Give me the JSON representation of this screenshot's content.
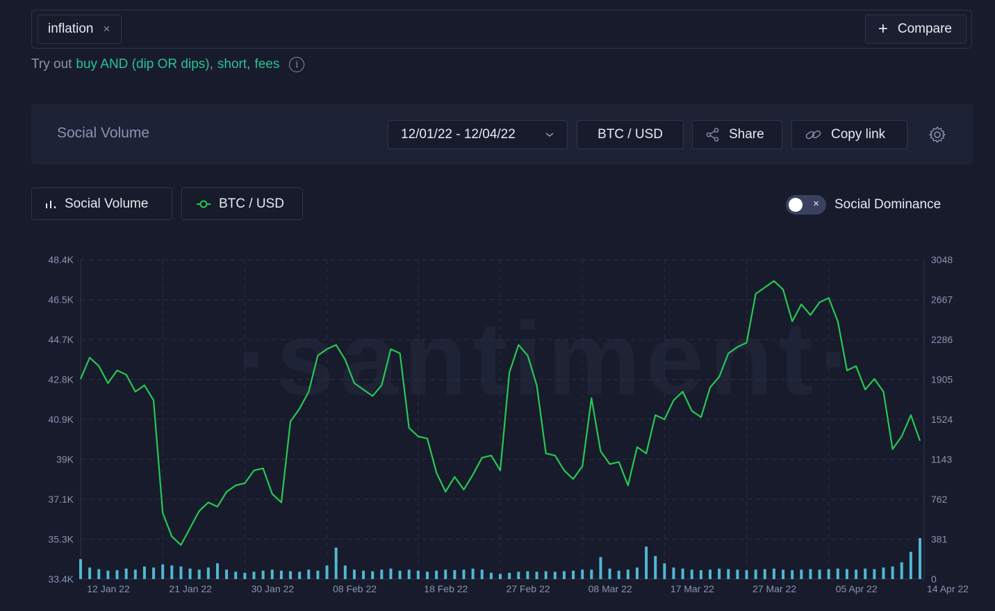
{
  "search": {
    "tag": "inflation",
    "remove": "×",
    "compare_label": "Compare"
  },
  "hint": {
    "prefix": "Try out",
    "queries": [
      "buy AND (dip OR dips)",
      "short",
      "fees"
    ],
    "sep": ","
  },
  "toolbar": {
    "title": "Social Volume",
    "date_range": "12/01/22 - 12/04/22",
    "pair": "BTC / USD",
    "share": "Share",
    "copy_link": "Copy link"
  },
  "metrics": {
    "social_volume": "Social Volume",
    "btc_usd": "BTC / USD",
    "dominance_toggle": "Social Dominance",
    "toggle_x": "×"
  },
  "watermark": "·santiment·",
  "colors": {
    "background": "#181b2b",
    "price_line": "#26c953",
    "volume_bars": "#4fb8d4",
    "accent": "#26c497"
  },
  "chart_data": {
    "type": "line",
    "x_labels": [
      "12 Jan 22",
      "21 Jan 22",
      "30 Jan 22",
      "08 Feb 22",
      "18 Feb 22",
      "27 Feb 22",
      "08 Mar 22",
      "17 Mar 22",
      "27 Mar 22",
      "05 Apr 22",
      "14 Apr 22"
    ],
    "left_axis_ticks": [
      "48.4K",
      "46.5K",
      "44.7K",
      "42.8K",
      "40.9K",
      "39K",
      "37.1K",
      "35.3K",
      "33.4K"
    ],
    "right_axis_ticks": [
      "3048",
      "2667",
      "2286",
      "1905",
      "1524",
      "1143",
      "762",
      "381",
      "0"
    ],
    "left_ylim": [
      33400,
      48400
    ],
    "right_ylim": [
      0,
      3048
    ],
    "grid": true,
    "series": [
      {
        "name": "BTC / USD",
        "axis": "left",
        "points": [
          [
            "01-12",
            42800
          ],
          [
            "01-13",
            43800
          ],
          [
            "01-14",
            43400
          ],
          [
            "01-15",
            42600
          ],
          [
            "01-16",
            43200
          ],
          [
            "01-17",
            43000
          ],
          [
            "01-18",
            42200
          ],
          [
            "01-19",
            42500
          ],
          [
            "01-20",
            41800
          ],
          [
            "01-21",
            36500
          ],
          [
            "01-22",
            35400
          ],
          [
            "01-23",
            35000
          ],
          [
            "01-24",
            35800
          ],
          [
            "01-25",
            36600
          ],
          [
            "01-26",
            37000
          ],
          [
            "01-27",
            36800
          ],
          [
            "01-28",
            37500
          ],
          [
            "01-29",
            37800
          ],
          [
            "01-30",
            37900
          ],
          [
            "01-31",
            38500
          ],
          [
            "02-01",
            38600
          ],
          [
            "02-02",
            37400
          ],
          [
            "02-03",
            37000
          ],
          [
            "02-04",
            40800
          ],
          [
            "02-05",
            41400
          ],
          [
            "02-06",
            42200
          ],
          [
            "02-07",
            43900
          ],
          [
            "02-08",
            44200
          ],
          [
            "02-09",
            44400
          ],
          [
            "02-10",
            43700
          ],
          [
            "02-11",
            42600
          ],
          [
            "02-12",
            42300
          ],
          [
            "02-13",
            42000
          ],
          [
            "02-14",
            42500
          ],
          [
            "02-15",
            44200
          ],
          [
            "02-16",
            44000
          ],
          [
            "02-17",
            40500
          ],
          [
            "02-18",
            40100
          ],
          [
            "02-19",
            40000
          ],
          [
            "02-20",
            38400
          ],
          [
            "02-21",
            37500
          ],
          [
            "02-22",
            38200
          ],
          [
            "02-23",
            37600
          ],
          [
            "02-24",
            38300
          ],
          [
            "02-25",
            39100
          ],
          [
            "02-26",
            39200
          ],
          [
            "02-27",
            38500
          ],
          [
            "02-28",
            43100
          ],
          [
            "03-01",
            44400
          ],
          [
            "03-02",
            43900
          ],
          [
            "03-03",
            42500
          ],
          [
            "03-04",
            39300
          ],
          [
            "03-05",
            39200
          ],
          [
            "03-06",
            38500
          ],
          [
            "03-07",
            38100
          ],
          [
            "03-08",
            38700
          ],
          [
            "03-09",
            41900
          ],
          [
            "03-10",
            39400
          ],
          [
            "03-11",
            38800
          ],
          [
            "03-12",
            38900
          ],
          [
            "03-13",
            37800
          ],
          [
            "03-14",
            39600
          ],
          [
            "03-15",
            39300
          ],
          [
            "03-16",
            41100
          ],
          [
            "03-17",
            40900
          ],
          [
            "03-18",
            41800
          ],
          [
            "03-19",
            42200
          ],
          [
            "03-20",
            41300
          ],
          [
            "03-21",
            41000
          ],
          [
            "03-22",
            42400
          ],
          [
            "03-23",
            42900
          ],
          [
            "03-24",
            44000
          ],
          [
            "03-25",
            44300
          ],
          [
            "03-26",
            44500
          ],
          [
            "03-27",
            46800
          ],
          [
            "03-28",
            47100
          ],
          [
            "03-29",
            47400
          ],
          [
            "03-30",
            47000
          ],
          [
            "03-31",
            45500
          ],
          [
            "04-01",
            46300
          ],
          [
            "04-02",
            45800
          ],
          [
            "04-03",
            46400
          ],
          [
            "04-04",
            46600
          ],
          [
            "04-05",
            45500
          ],
          [
            "04-06",
            43200
          ],
          [
            "04-07",
            43400
          ],
          [
            "04-08",
            42300
          ],
          [
            "04-09",
            42800
          ],
          [
            "04-10",
            42200
          ],
          [
            "04-11",
            39500
          ],
          [
            "04-12",
            40100
          ],
          [
            "04-13",
            41100
          ],
          [
            "04-14",
            39900
          ]
        ]
      },
      {
        "name": "Social Volume",
        "axis": "right",
        "style": "bars",
        "points": [
          [
            "01-12",
            190
          ],
          [
            "01-13",
            110
          ],
          [
            "01-14",
            95
          ],
          [
            "01-15",
            80
          ],
          [
            "01-16",
            85
          ],
          [
            "01-17",
            100
          ],
          [
            "01-18",
            90
          ],
          [
            "01-19",
            120
          ],
          [
            "01-20",
            110
          ],
          [
            "01-21",
            140
          ],
          [
            "01-22",
            130
          ],
          [
            "01-23",
            120
          ],
          [
            "01-24",
            100
          ],
          [
            "01-25",
            90
          ],
          [
            "01-26",
            110
          ],
          [
            "01-27",
            150
          ],
          [
            "01-28",
            90
          ],
          [
            "01-29",
            70
          ],
          [
            "01-30",
            60
          ],
          [
            "01-31",
            70
          ],
          [
            "02-01",
            80
          ],
          [
            "02-02",
            90
          ],
          [
            "02-03",
            80
          ],
          [
            "02-04",
            75
          ],
          [
            "02-05",
            70
          ],
          [
            "02-06",
            90
          ],
          [
            "02-07",
            80
          ],
          [
            "02-08",
            130
          ],
          [
            "02-09",
            300
          ],
          [
            "02-10",
            130
          ],
          [
            "02-11",
            90
          ],
          [
            "02-12",
            80
          ],
          [
            "02-13",
            75
          ],
          [
            "02-14",
            90
          ],
          [
            "02-15",
            100
          ],
          [
            "02-16",
            80
          ],
          [
            "02-17",
            90
          ],
          [
            "02-18",
            80
          ],
          [
            "02-19",
            70
          ],
          [
            "02-20",
            80
          ],
          [
            "02-21",
            90
          ],
          [
            "02-22",
            85
          ],
          [
            "02-23",
            90
          ],
          [
            "02-24",
            100
          ],
          [
            "02-25",
            90
          ],
          [
            "02-26",
            60
          ],
          [
            "02-27",
            50
          ],
          [
            "02-28",
            60
          ],
          [
            "03-01",
            70
          ],
          [
            "03-02",
            75
          ],
          [
            "03-03",
            70
          ],
          [
            "03-04",
            75
          ],
          [
            "03-05",
            70
          ],
          [
            "03-06",
            75
          ],
          [
            "03-07",
            80
          ],
          [
            "03-08",
            90
          ],
          [
            "03-09",
            90
          ],
          [
            "03-10",
            210
          ],
          [
            "03-11",
            100
          ],
          [
            "03-12",
            80
          ],
          [
            "03-13",
            90
          ],
          [
            "03-14",
            110
          ],
          [
            "03-15",
            310
          ],
          [
            "03-16",
            220
          ],
          [
            "03-17",
            150
          ],
          [
            "03-18",
            110
          ],
          [
            "03-19",
            100
          ],
          [
            "03-20",
            90
          ],
          [
            "03-21",
            85
          ],
          [
            "03-22",
            90
          ],
          [
            "03-23",
            100
          ],
          [
            "03-24",
            95
          ],
          [
            "03-25",
            90
          ],
          [
            "03-26",
            85
          ],
          [
            "03-27",
            90
          ],
          [
            "03-28",
            95
          ],
          [
            "03-29",
            100
          ],
          [
            "03-30",
            90
          ],
          [
            "03-31",
            85
          ],
          [
            "04-01",
            90
          ],
          [
            "04-02",
            95
          ],
          [
            "04-03",
            90
          ],
          [
            "04-04",
            95
          ],
          [
            "04-05",
            100
          ],
          [
            "04-06",
            95
          ],
          [
            "04-07",
            90
          ],
          [
            "04-08",
            100
          ],
          [
            "04-09",
            95
          ],
          [
            "04-10",
            110
          ],
          [
            "04-11",
            120
          ],
          [
            "04-12",
            160
          ],
          [
            "04-13",
            260
          ],
          [
            "04-14",
            390
          ]
        ]
      }
    ]
  }
}
